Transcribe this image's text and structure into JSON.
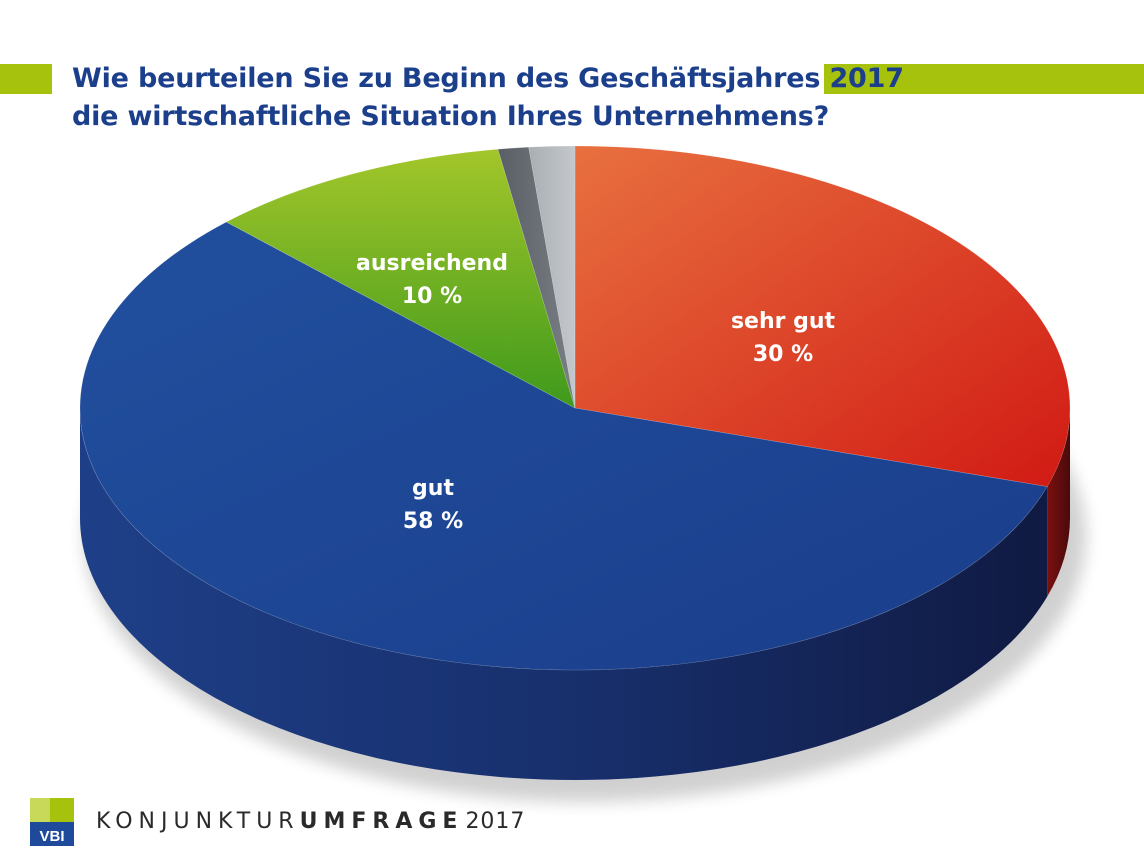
{
  "title_lines": [
    "Wie beurteilen Sie zu Beginn des Geschäftsjahres 2017",
    "die wirtschaftliche Situation Ihres Unternehmens?"
  ],
  "colors": {
    "accent_green": "#a6c20d",
    "title_blue": "#1c3f8c"
  },
  "chart_data": {
    "type": "pie",
    "title": "Wie beurteilen Sie zu Beginn des Geschäftsjahres 2017 die wirtschaftliche Situation Ihres Unternehmens?",
    "style": "3d",
    "slices": [
      {
        "label": "sehr gut",
        "value": 30,
        "value_label": "30 %",
        "color": "#d8311f"
      },
      {
        "label": "gut",
        "value": 58,
        "value_label": "58 %",
        "color": "#1f4a9c"
      },
      {
        "label": "ausreichend",
        "value": 10,
        "value_label": "10 %",
        "color": "#5aa821"
      },
      {
        "label": "",
        "value": 1,
        "value_label": "",
        "color": "#6a6f75"
      },
      {
        "label": "",
        "value": 1.5,
        "value_label": "",
        "color": "#9da3a8"
      }
    ]
  },
  "footer": {
    "logo_text": "VBI",
    "label_regular": "KONJUNKTUR",
    "label_bold": "UMFRAGE",
    "year": "2017"
  }
}
